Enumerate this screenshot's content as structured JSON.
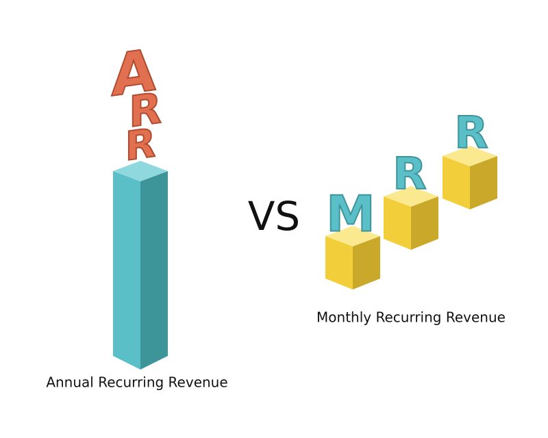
{
  "left": {
    "letters": [
      "A",
      "R",
      "R"
    ],
    "label": "Annual Recurring Revenue"
  },
  "vs": "VS",
  "right": {
    "letters": [
      "M",
      "R",
      "R"
    ],
    "label": "Monthly Recurring Revenue"
  }
}
